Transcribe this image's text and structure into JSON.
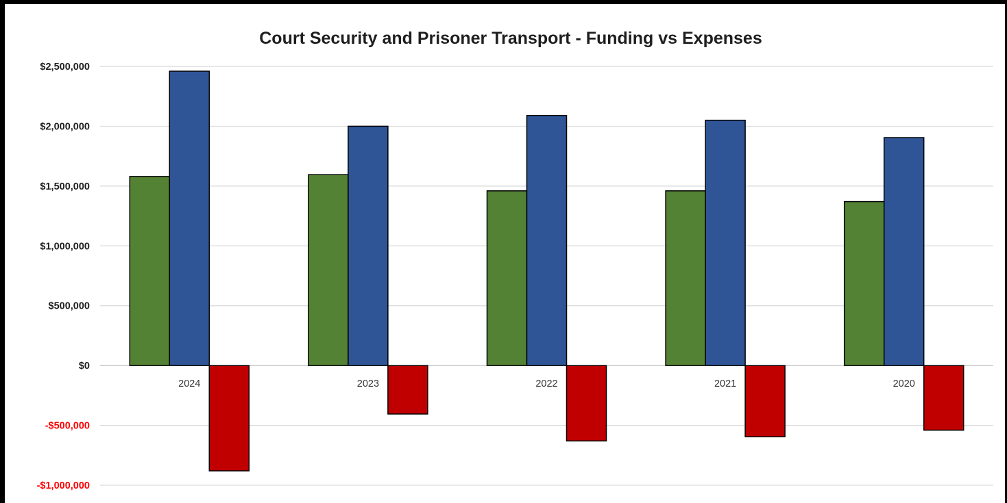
{
  "chart_data": {
    "type": "bar",
    "title": "Court Security and Prisoner Transport - Funding vs Expenses",
    "categories": [
      "2024",
      "2023",
      "2022",
      "2021",
      "2020"
    ],
    "series": [
      {
        "color": "#548235",
        "values": [
          1580000,
          1595000,
          1460000,
          1460000,
          1370000
        ]
      },
      {
        "color": "#2f5597",
        "values": [
          2460000,
          2000000,
          2090000,
          2050000,
          1905000
        ]
      },
      {
        "color": "#c00000",
        "values": [
          -880000,
          -405000,
          -630000,
          -595000,
          -540000
        ]
      }
    ],
    "ylim": [
      -1000000,
      2500000
    ],
    "yticks": [
      2500000,
      2000000,
      1500000,
      1000000,
      500000,
      0,
      -500000,
      -1000000
    ],
    "ytick_labels": [
      "$2,500,000",
      "$2,000,000",
      "$1,500,000",
      "$1,000,000",
      "$500,000",
      "$0",
      "-$500,000",
      "-$1,000,000"
    ],
    "grid": true,
    "colors": {
      "positive_tick": "#1f1f1f",
      "negative_tick": "#ff0000",
      "grid": "#d9d9d9",
      "axis": "#bfbfbf"
    }
  }
}
